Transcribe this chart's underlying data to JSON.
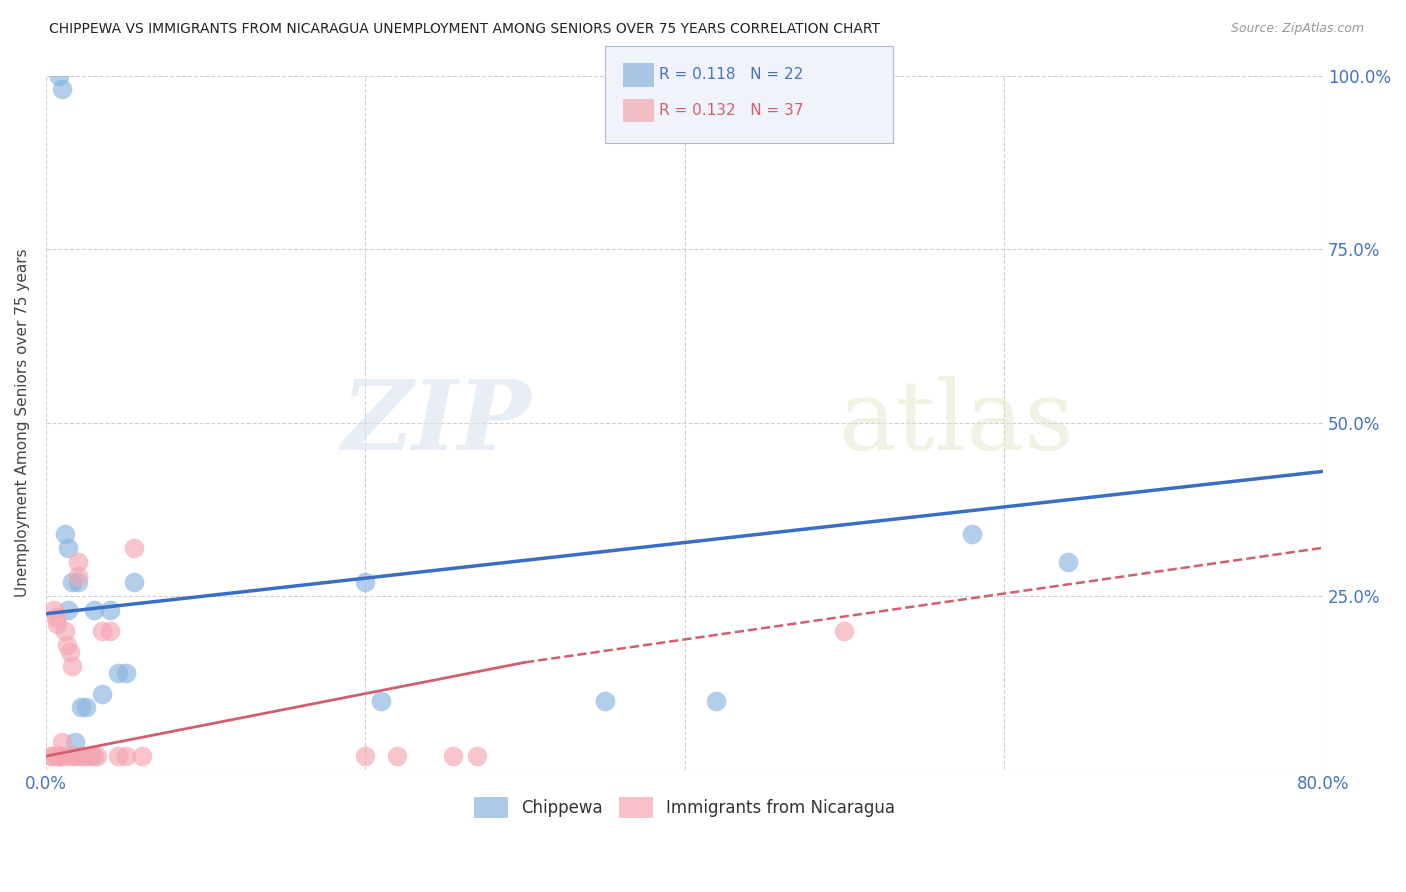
{
  "title": "CHIPPEWA VS IMMIGRANTS FROM NICARAGUA UNEMPLOYMENT AMONG SENIORS OVER 75 YEARS CORRELATION CHART",
  "source": "Source: ZipAtlas.com",
  "ylabel": "Unemployment Among Seniors over 75 years",
  "xlim": [
    0,
    0.8
  ],
  "ylim": [
    0,
    1.0
  ],
  "chippewa_color": "#8ab4e0",
  "nicaragua_color": "#f4a7b0",
  "chippewa_line_color": "#3a6dc4",
  "nicaragua_line_color": "#d06070",
  "chippewa_x": [
    0.008,
    0.01,
    0.012,
    0.014,
    0.014,
    0.016,
    0.018,
    0.02,
    0.022,
    0.025,
    0.03,
    0.035,
    0.04,
    0.045,
    0.05,
    0.055,
    0.2,
    0.21,
    0.35,
    0.42,
    0.58,
    0.64
  ],
  "chippewa_y": [
    1.0,
    0.98,
    0.34,
    0.32,
    0.23,
    0.27,
    0.04,
    0.27,
    0.09,
    0.09,
    0.23,
    0.11,
    0.23,
    0.14,
    0.14,
    0.27,
    0.27,
    0.1,
    0.1,
    0.1,
    0.34,
    0.3
  ],
  "nicaragua_x": [
    0.003,
    0.004,
    0.005,
    0.006,
    0.007,
    0.007,
    0.008,
    0.008,
    0.009,
    0.01,
    0.01,
    0.012,
    0.013,
    0.014,
    0.015,
    0.016,
    0.017,
    0.018,
    0.02,
    0.02,
    0.022,
    0.023,
    0.025,
    0.028,
    0.03,
    0.032,
    0.035,
    0.04,
    0.045,
    0.05,
    0.055,
    0.06,
    0.2,
    0.22,
    0.255,
    0.27,
    0.5
  ],
  "nicaragua_y": [
    0.02,
    0.02,
    0.23,
    0.22,
    0.21,
    0.02,
    0.02,
    0.02,
    0.02,
    0.04,
    0.02,
    0.2,
    0.18,
    0.02,
    0.17,
    0.15,
    0.02,
    0.02,
    0.3,
    0.28,
    0.02,
    0.02,
    0.02,
    0.02,
    0.02,
    0.02,
    0.2,
    0.2,
    0.02,
    0.02,
    0.32,
    0.02,
    0.02,
    0.02,
    0.02,
    0.02,
    0.2
  ],
  "watermark_zip": "ZIP",
  "watermark_atlas": "atlas",
  "background_color": "#ffffff",
  "grid_color": "#cccccc",
  "axis_color": "#4472c4",
  "legend_box_color": "#f0f4fa",
  "legend_border_color": "#b0b8d0"
}
